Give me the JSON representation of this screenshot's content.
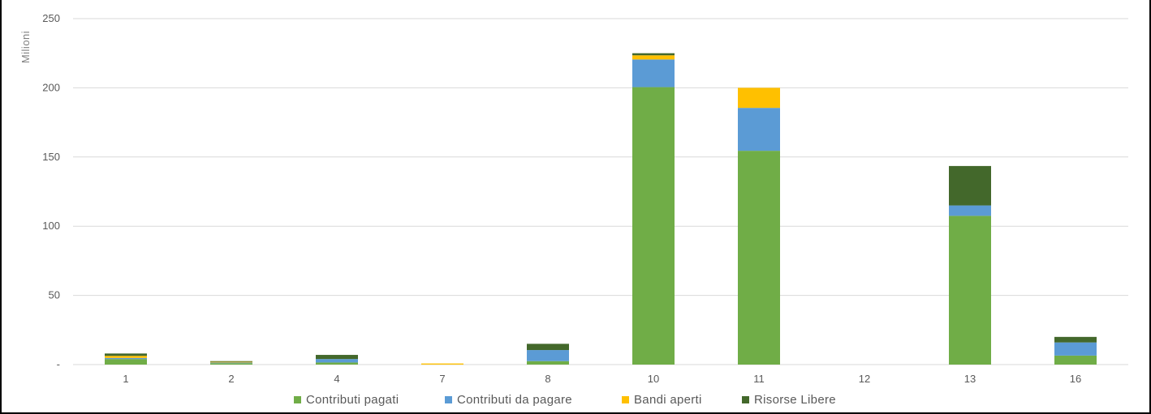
{
  "chart_data": {
    "type": "bar",
    "stacked": true,
    "title": "",
    "xlabel": "",
    "ylabel": "Milioni",
    "ylim": [
      0,
      250
    ],
    "yticks": [
      {
        "value": 0,
        "label": "-"
      },
      {
        "value": 50,
        "label": "50"
      },
      {
        "value": 100,
        "label": "100"
      },
      {
        "value": 150,
        "label": "150"
      },
      {
        "value": 200,
        "label": "200"
      },
      {
        "value": 250,
        "label": "250"
      }
    ],
    "grid": true,
    "legend_position": "bottom",
    "categories": [
      "1",
      "2",
      "4",
      "7",
      "8",
      "10",
      "11",
      "12",
      "13",
      "16"
    ],
    "series": [
      {
        "name": "Contributi pagati",
        "color": "#70ad47",
        "values": [
          4,
          1,
          1.5,
          0,
          2.5,
          200.5,
          154.5,
          0,
          107.5,
          6.5
        ]
      },
      {
        "name": "Contributi  da pagare",
        "color": "#5b9bd5",
        "values": [
          0.8,
          0.5,
          2.5,
          0,
          8,
          20,
          31,
          0,
          7.5,
          9.5
        ]
      },
      {
        "name": "Bandi aperti",
        "color": "#ffc000",
        "values": [
          1.5,
          0.5,
          0,
          0.8,
          0,
          3,
          14.5,
          0,
          0,
          0
        ]
      },
      {
        "name": "Risorse Libere",
        "color": "#43682b",
        "values": [
          1.7,
          0.5,
          3,
          0,
          4.5,
          1.5,
          0,
          0,
          28.5,
          4
        ]
      }
    ]
  }
}
